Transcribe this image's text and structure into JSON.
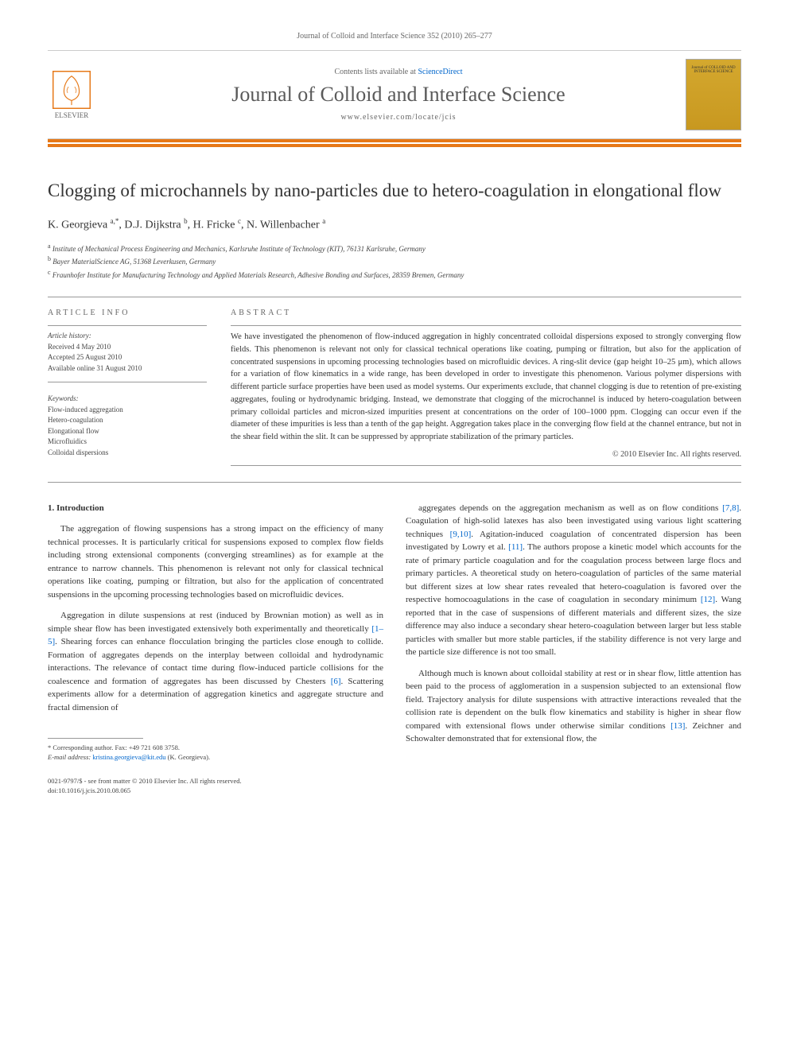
{
  "citation": "Journal of Colloid and Interface Science 352 (2010) 265–277",
  "header": {
    "contents_prefix": "Contents lists available at ",
    "sciencedirect": "ScienceDirect",
    "journal_name": "Journal of Colloid and Interface Science",
    "journal_url": "www.elsevier.com/locate/jcis",
    "publisher": "ELSEVIER",
    "cover_label": "Journal of COLLOID AND INTERFACE SCIENCE"
  },
  "title": "Clogging of microchannels by nano-particles due to hetero-coagulation in elongational flow",
  "authors_html": "K. Georgieva <sup>a,*</sup>, D.J. Dijkstra <sup>b</sup>, H. Fricke <sup>c</sup>, N. Willenbacher <sup>a</sup>",
  "affiliations": {
    "a": "Institute of Mechanical Process Engineering and Mechanics, Karlsruhe Institute of Technology (KIT), 76131 Karlsruhe, Germany",
    "b": "Bayer MaterialScience AG, 51368 Leverkusen, Germany",
    "c": "Fraunhofer Institute for Manufacturing Technology and Applied Materials Research, Adhesive Bonding and Surfaces, 28359 Bremen, Germany"
  },
  "article_info": {
    "label": "ARTICLE INFO",
    "history_label": "Article history:",
    "received": "Received 4 May 2010",
    "accepted": "Accepted 25 August 2010",
    "online": "Available online 31 August 2010",
    "keywords_label": "Keywords:",
    "keywords": [
      "Flow-induced aggregation",
      "Hetero-coagulation",
      "Elongational flow",
      "Microfluidics",
      "Colloidal dispersions"
    ]
  },
  "abstract": {
    "label": "ABSTRACT",
    "text": "We have investigated the phenomenon of flow-induced aggregation in highly concentrated colloidal dispersions exposed to strongly converging flow fields. This phenomenon is relevant not only for classical technical operations like coating, pumping or filtration, but also for the application of concentrated suspensions in upcoming processing technologies based on microfluidic devices. A ring-slit device (gap height 10–25 μm), which allows for a variation of flow kinematics in a wide range, has been developed in order to investigate this phenomenon. Various polymer dispersions with different particle surface properties have been used as model systems. Our experiments exclude, that channel clogging is due to retention of pre-existing aggregates, fouling or hydrodynamic bridging. Instead, we demonstrate that clogging of the microchannel is induced by hetero-coagulation between primary colloidal particles and micron-sized impurities present at concentrations on the order of 100–1000 ppm. Clogging can occur even if the diameter of these impurities is less than a tenth of the gap height. Aggregation takes place in the converging flow field at the channel entrance, but not in the shear field within the slit. It can be suppressed by appropriate stabilization of the primary particles.",
    "copyright": "© 2010 Elsevier Inc. All rights reserved."
  },
  "body": {
    "section1_heading": "1. Introduction",
    "col1_p1": "The aggregation of flowing suspensions has a strong impact on the efficiency of many technical processes. It is particularly critical for suspensions exposed to complex flow fields including strong extensional components (converging streamlines) as for example at the entrance to narrow channels. This phenomenon is relevant not only for classical technical operations like coating, pumping or filtration, but also for the application of concentrated suspensions in the upcoming processing technologies based on microfluidic devices.",
    "col1_p2": "Aggregation in dilute suspensions at rest (induced by Brownian motion) as well as in simple shear flow has been investigated extensively both experimentally and theoretically [1–5]. Shearing forces can enhance flocculation bringing the particles close enough to collide. Formation of aggregates depends on the interplay between colloidal and hydrodynamic interactions. The relevance of contact time during flow-induced particle collisions for the coalescence and formation of aggregates has been discussed by Chesters [6]. Scattering experiments allow for a determination of aggregation kinetics and aggregate structure and fractal dimension of",
    "col2_p1": "aggregates depends on the aggregation mechanism as well as on flow conditions [7,8]. Coagulation of high-solid latexes has also been investigated using various light scattering techniques [9,10]. Agitation-induced coagulation of concentrated dispersion has been investigated by Lowry et al. [11]. The authors propose a kinetic model which accounts for the rate of primary particle coagulation and for the coagulation process between large flocs and primary particles. A theoretical study on hetero-coagulation of particles of the same material but different sizes at low shear rates revealed that hetero-coagulation is favored over the respective homocoagulations in the case of coagulation in secondary minimum [12]. Wang reported that in the case of suspensions of different materials and different sizes, the size difference may also induce a secondary shear hetero-coagulation between larger but less stable particles with smaller but more stable particles, if the stability difference is not very large and the particle size difference is not too small.",
    "col2_p2": "Although much is known about colloidal stability at rest or in shear flow, little attention has been paid to the process of agglomeration in a suspension subjected to an extensional flow field. Trajectory analysis for dilute suspensions with attractive interactions revealed that the collision rate is dependent on the bulk flow kinematics and stability is higher in shear flow compared with extensional flows under otherwise similar conditions [13]. Zeichner and Schowalter demonstrated that for extensional flow, the"
  },
  "footnote": {
    "corr": "* Corresponding author. Fax: +49 721 608 3758.",
    "email_label": "E-mail address:",
    "email": "kristina.georgieva@kit.edu",
    "email_who": "(K. Georgieva)."
  },
  "footer": {
    "line1": "0021-9797/$ - see front matter © 2010 Elsevier Inc. All rights reserved.",
    "line2": "doi:10.1016/j.jcis.2010.08.065"
  },
  "colors": {
    "accent": "#e67817",
    "link": "#0066cc",
    "cover_bg": "#d4a82e"
  }
}
